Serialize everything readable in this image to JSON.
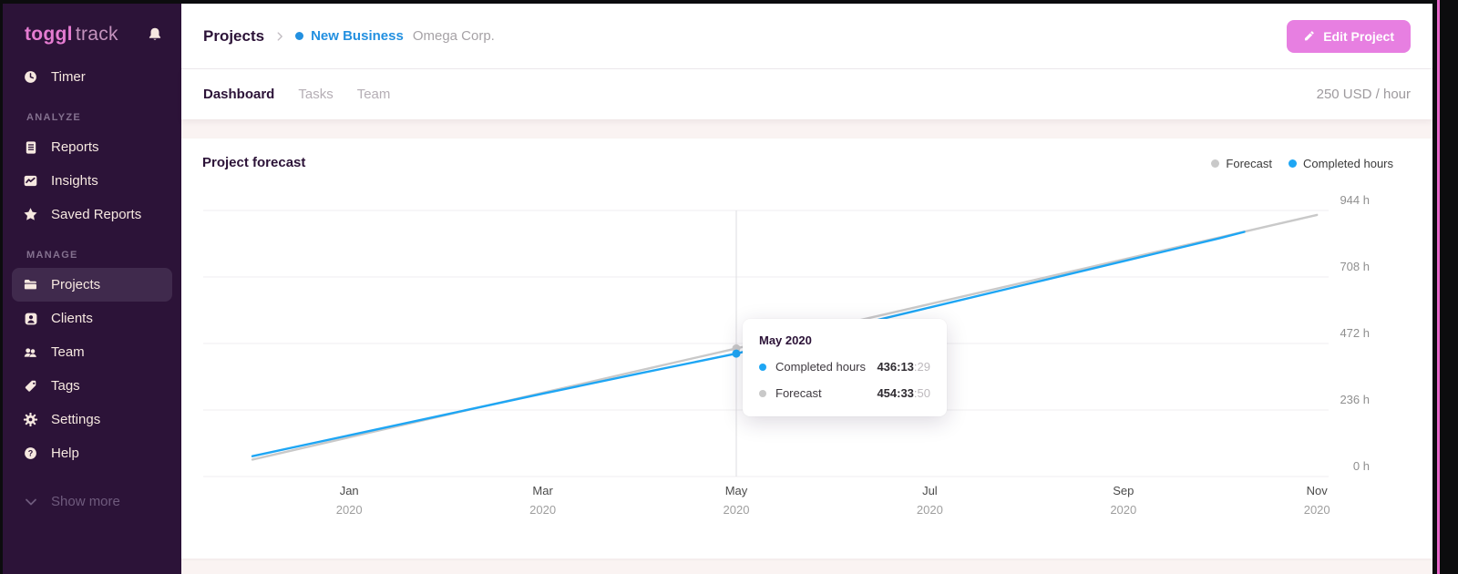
{
  "colors": {
    "sidebar_bg": "#2c1338",
    "brand_pink": "#e57cd1",
    "accent_pink": "#e77fe1",
    "link_blue": "#2390e0",
    "completed_blue": "#1ea6f4",
    "forecast_gray": "#c9c9c9",
    "edge_pink_line": "#e866c9"
  },
  "sidebar": {
    "logo": {
      "bold": "toggl",
      "light": "track"
    },
    "bell_icon": "bell-icon",
    "sections": [
      {
        "title": "",
        "items": [
          {
            "label": "Timer",
            "icon": "clock-icon",
            "active": false
          }
        ]
      },
      {
        "title": "ANALYZE",
        "items": [
          {
            "label": "Reports",
            "icon": "reports-icon",
            "active": false
          },
          {
            "label": "Insights",
            "icon": "insights-icon",
            "active": false
          },
          {
            "label": "Saved Reports",
            "icon": "star-icon",
            "active": false
          }
        ]
      },
      {
        "title": "MANAGE",
        "items": [
          {
            "label": "Projects",
            "icon": "folder-icon",
            "active": true
          },
          {
            "label": "Clients",
            "icon": "client-icon",
            "active": false
          },
          {
            "label": "Team",
            "icon": "team-icon",
            "active": false
          },
          {
            "label": "Tags",
            "icon": "tag-icon",
            "active": false
          },
          {
            "label": "Settings",
            "icon": "gear-icon",
            "active": false
          },
          {
            "label": "Help",
            "icon": "help-icon",
            "active": false
          }
        ]
      }
    ],
    "show_more_label": "Show more"
  },
  "header": {
    "breadcrumb_root": "Projects",
    "project_name": "New Business",
    "client_name": "Omega Corp.",
    "edit_button_label": "Edit Project"
  },
  "tabs": {
    "items": [
      {
        "label": "Dashboard",
        "active": true
      },
      {
        "label": "Tasks",
        "active": false
      },
      {
        "label": "Team",
        "active": false
      }
    ],
    "rate_label": "250 USD / hour"
  },
  "chart_data": {
    "type": "line",
    "title": "Project forecast",
    "xlabel": "",
    "ylabel": "hours",
    "ylim": [
      0,
      944
    ],
    "grid": true,
    "legend_position": "top-right",
    "y_ticks": [
      {
        "value": 944,
        "label": "944 h"
      },
      {
        "value": 708,
        "label": "708 h"
      },
      {
        "value": 472,
        "label": "472 h"
      },
      {
        "value": 236,
        "label": "236 h"
      },
      {
        "value": 0,
        "label": "0 h"
      }
    ],
    "x_ticks": [
      {
        "index": 1,
        "month": "Jan",
        "year": "2020"
      },
      {
        "index": 3,
        "month": "Mar",
        "year": "2020"
      },
      {
        "index": 5,
        "month": "May",
        "year": "2020"
      },
      {
        "index": 7,
        "month": "Jul",
        "year": "2020"
      },
      {
        "index": 9,
        "month": "Sep",
        "year": "2020"
      },
      {
        "index": 11,
        "month": "Nov",
        "year": "2020"
      }
    ],
    "series": [
      {
        "name": "Forecast",
        "color": "#c9c9c9",
        "points": [
          [
            0,
            60
          ],
          [
            1,
            139
          ],
          [
            2,
            218
          ],
          [
            3,
            297
          ],
          [
            4,
            376
          ],
          [
            5,
            454.56
          ],
          [
            6,
            533
          ],
          [
            7,
            612
          ],
          [
            8,
            691
          ],
          [
            9,
            770
          ],
          [
            10,
            849
          ],
          [
            11,
            928
          ]
        ]
      },
      {
        "name": "Completed hours",
        "color": "#1ea6f4",
        "points": [
          [
            0,
            72
          ],
          [
            1,
            146
          ],
          [
            2,
            220
          ],
          [
            3,
            294
          ],
          [
            4,
            366
          ],
          [
            5,
            436.22
          ],
          [
            6,
            518
          ],
          [
            7,
            600
          ],
          [
            8,
            682
          ],
          [
            9,
            764
          ],
          [
            10,
            846
          ],
          [
            10.25,
            868
          ]
        ]
      }
    ],
    "legend": [
      {
        "label": "Forecast",
        "color": "#c9c9c9"
      },
      {
        "label": "Completed hours",
        "color": "#1ea6f4"
      }
    ],
    "highlight": {
      "x": 5,
      "title": "May 2020",
      "rows": [
        {
          "label": "Completed hours",
          "color": "#1ea6f4",
          "value": "436:13",
          "seconds": ":29"
        },
        {
          "label": "Forecast",
          "color": "#c9c9c9",
          "value": "454:33",
          "seconds": ":50"
        }
      ]
    }
  }
}
